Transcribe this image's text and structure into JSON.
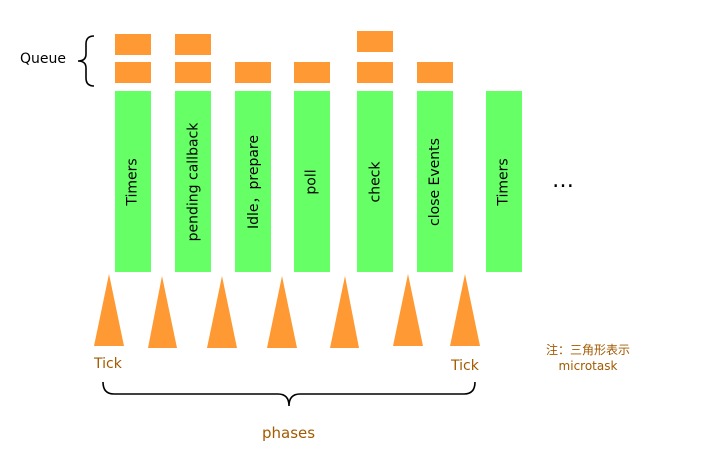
{
  "queue_label": "Queue",
  "phases": [
    "Timers",
    "pending callback",
    "Idle，prepare",
    "poll",
    "check",
    "close Events",
    "Timers"
  ],
  "ellipsis": "…",
  "tick_left": "Tick",
  "tick_right": "Tick",
  "phases_label": "phases",
  "note": "注：三角形表示microtask",
  "colors": {
    "phase_fill": "#66ff66",
    "queue_fill": "#ff9933",
    "triangle_fill": "#ff9933",
    "accent_text": "#a35a00"
  }
}
